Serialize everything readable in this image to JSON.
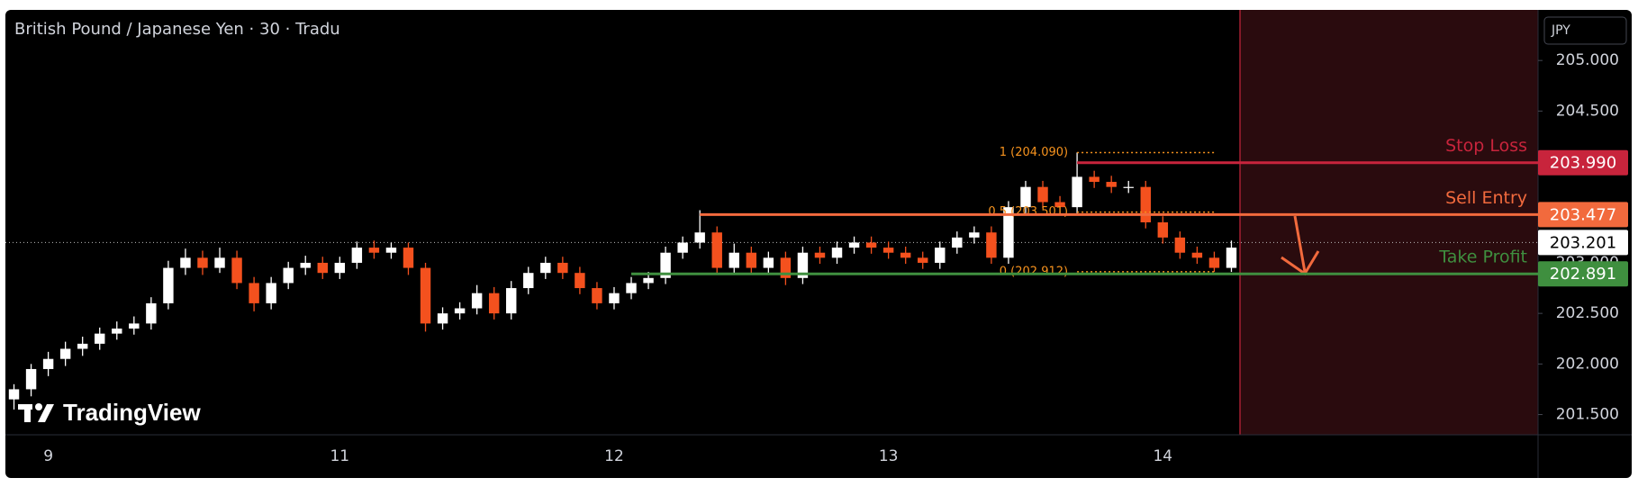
{
  "chart_data": {
    "type": "candlestick",
    "title": "British Pound / Japanese Yen · 30 · Tradu",
    "currency": "JPY",
    "watermark": "TradingView",
    "categories": [
      null,
      null,
      "9",
      null,
      null,
      null,
      null,
      null,
      null,
      null,
      null,
      null,
      null,
      null,
      null,
      null,
      null,
      null,
      null,
      "11",
      null,
      null,
      null,
      null,
      null,
      null,
      null,
      null,
      null,
      null,
      null,
      null,
      null,
      null,
      null,
      "12",
      null,
      null,
      null,
      null,
      null,
      null,
      null,
      null,
      null,
      null,
      null,
      null,
      null,
      null,
      null,
      "13",
      null,
      null,
      null,
      null,
      null,
      null,
      null,
      null,
      null,
      null,
      null,
      null,
      null,
      null,
      null,
      "14",
      null,
      null,
      null,
      null
    ],
    "open": [
      201.65,
      201.75,
      201.95,
      202.05,
      202.15,
      202.2,
      202.3,
      202.35,
      202.4,
      202.6,
      202.95,
      203.05,
      202.95,
      203.05,
      202.8,
      202.6,
      202.8,
      202.95,
      203.0,
      202.9,
      203.0,
      203.15,
      203.1,
      203.15,
      202.95,
      202.4,
      202.5,
      202.55,
      202.7,
      202.5,
      202.75,
      202.9,
      203.0,
      202.9,
      202.75,
      202.6,
      202.7,
      202.8,
      202.85,
      203.1,
      203.2,
      203.3,
      202.95,
      203.1,
      202.95,
      203.05,
      202.85,
      203.1,
      203.05,
      203.15,
      203.2,
      203.15,
      203.1,
      203.05,
      203.0,
      203.15,
      203.25,
      203.3,
      203.05,
      203.55,
      203.75,
      203.6,
      203.55,
      203.85,
      203.8,
      203.75,
      203.75,
      203.4,
      203.25,
      203.1,
      203.05,
      202.95
    ],
    "high": [
      201.8,
      202.0,
      202.12,
      202.22,
      202.27,
      202.36,
      202.42,
      202.47,
      202.66,
      203.02,
      203.14,
      203.12,
      203.15,
      203.12,
      202.86,
      202.86,
      203.01,
      203.07,
      203.06,
      203.06,
      203.21,
      203.22,
      203.2,
      203.2,
      203.0,
      202.56,
      202.61,
      202.78,
      202.76,
      202.82,
      202.96,
      203.06,
      203.06,
      202.96,
      202.81,
      202.76,
      202.86,
      202.91,
      203.16,
      203.26,
      203.52,
      203.36,
      203.19,
      203.16,
      203.11,
      203.11,
      203.16,
      203.16,
      203.21,
      203.26,
      203.26,
      203.21,
      203.16,
      203.11,
      203.21,
      203.31,
      203.36,
      203.36,
      203.61,
      203.81,
      203.81,
      203.66,
      204.09,
      203.91,
      203.86,
      203.81,
      203.81,
      203.46,
      203.31,
      203.16,
      203.11,
      203.22
    ],
    "low": [
      201.55,
      201.68,
      201.88,
      201.98,
      202.08,
      202.14,
      202.24,
      202.29,
      202.34,
      202.54,
      202.88,
      202.88,
      202.9,
      202.74,
      202.52,
      202.54,
      202.74,
      202.88,
      202.84,
      202.84,
      202.94,
      203.04,
      203.04,
      202.88,
      202.32,
      202.34,
      202.44,
      202.49,
      202.44,
      202.44,
      202.69,
      202.84,
      202.84,
      202.69,
      202.54,
      202.54,
      202.64,
      202.74,
      202.79,
      203.04,
      203.14,
      202.89,
      202.89,
      202.89,
      202.89,
      202.78,
      202.79,
      202.99,
      202.99,
      203.09,
      203.09,
      203.04,
      202.99,
      202.94,
      202.94,
      203.09,
      203.19,
      202.99,
      202.99,
      203.49,
      203.54,
      203.49,
      203.49,
      203.74,
      203.69,
      203.69,
      203.34,
      203.19,
      203.04,
      202.99,
      202.91,
      202.91
    ],
    "close": [
      201.75,
      201.95,
      202.05,
      202.15,
      202.2,
      202.3,
      202.35,
      202.4,
      202.6,
      202.95,
      203.05,
      202.95,
      203.05,
      202.8,
      202.6,
      202.8,
      202.95,
      203.0,
      202.9,
      203.0,
      203.15,
      203.1,
      203.15,
      202.95,
      202.4,
      202.5,
      202.55,
      202.7,
      202.5,
      202.75,
      202.9,
      203.0,
      202.9,
      202.75,
      202.6,
      202.7,
      202.8,
      202.85,
      203.1,
      203.2,
      203.3,
      202.95,
      203.1,
      202.95,
      203.05,
      202.85,
      203.1,
      203.05,
      203.15,
      203.2,
      203.15,
      203.1,
      203.05,
      203.0,
      203.15,
      203.25,
      203.3,
      203.05,
      203.55,
      203.75,
      203.6,
      203.55,
      203.85,
      203.8,
      203.75,
      203.75,
      203.4,
      203.25,
      203.1,
      203.05,
      202.95,
      203.15
    ],
    "up_color": "#ffffff",
    "down_color": "#f4511e",
    "ylim": [
      201.3,
      205.5
    ],
    "yticks": [
      {
        "value": 205,
        "label": "205.000"
      },
      {
        "value": 204.5,
        "label": "204.500"
      },
      {
        "value": 203,
        "label": "203.000"
      },
      {
        "value": 202.5,
        "label": "202.500"
      },
      {
        "value": 202,
        "label": "202.000"
      },
      {
        "value": 201.5,
        "label": "201.500"
      }
    ],
    "levels": [
      {
        "name": "Stop Loss",
        "value": 203.99,
        "label": "203.990",
        "color": "#c8243c"
      },
      {
        "name": "Sell Entry",
        "value": 203.477,
        "label": "203.477",
        "color": "#f26a3d"
      },
      {
        "name": "Take Profit",
        "value": 202.891,
        "label": "202.891",
        "color": "#3f8f3f"
      }
    ],
    "last_price": {
      "value": 203.201,
      "label": "203.201"
    },
    "fib_levels": [
      {
        "value": 204.09,
        "label": "1 (204.090)"
      },
      {
        "value": 203.501,
        "label": "0.5 (203.501)"
      },
      {
        "value": 202.912,
        "label": "0 (202.912)"
      }
    ],
    "fib_color": "#f7931e"
  }
}
